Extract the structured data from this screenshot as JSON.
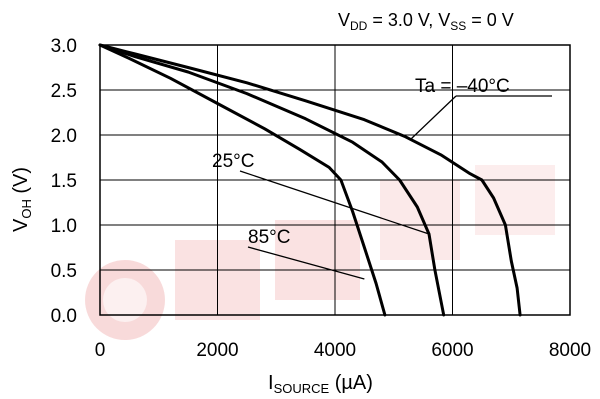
{
  "chart_data": {
    "type": "line",
    "condition": {
      "v1": "V",
      "v1_sub": "DD",
      "v1_rest": " = 3.0 V, V",
      "v2_sub": "SS",
      "v2_rest": " = 0 V"
    },
    "xlabel": {
      "main": "I",
      "sub": "SOURCE",
      "rest": " (µA)"
    },
    "ylabel": {
      "main": "V",
      "sub": "OH",
      "rest": " (V)"
    },
    "xlim": [
      0,
      8000
    ],
    "ylim": [
      0,
      3.0
    ],
    "xticks": [
      "0",
      "2000",
      "4000",
      "6000",
      "8000"
    ],
    "yticks": [
      "0.0",
      "0.5",
      "1.0",
      "1.5",
      "2.0",
      "2.5",
      "3.0"
    ],
    "grid": true,
    "series": [
      {
        "name": "Ta = –40°C",
        "points": [
          [
            0,
            3.0
          ],
          [
            600,
            2.9
          ],
          [
            1500,
            2.75
          ],
          [
            2500,
            2.58
          ],
          [
            3500,
            2.38
          ],
          [
            4500,
            2.17
          ],
          [
            5200,
            1.98
          ],
          [
            5800,
            1.78
          ],
          [
            6300,
            1.57
          ],
          [
            6500,
            1.5
          ],
          [
            6700,
            1.3
          ],
          [
            6900,
            1.0
          ],
          [
            7000,
            0.6
          ],
          [
            7100,
            0.3
          ],
          [
            7150,
            0.0
          ]
        ]
      },
      {
        "name": "25°C",
        "points": [
          [
            0,
            3.0
          ],
          [
            600,
            2.87
          ],
          [
            1500,
            2.7
          ],
          [
            2500,
            2.46
          ],
          [
            3500,
            2.18
          ],
          [
            4300,
            1.92
          ],
          [
            4800,
            1.7
          ],
          [
            5100,
            1.5
          ],
          [
            5400,
            1.2
          ],
          [
            5600,
            0.9
          ],
          [
            5700,
            0.5
          ],
          [
            5850,
            0.0
          ]
        ]
      },
      {
        "name": "85°C",
        "points": [
          [
            0,
            3.0
          ],
          [
            500,
            2.85
          ],
          [
            1200,
            2.63
          ],
          [
            2000,
            2.35
          ],
          [
            2800,
            2.07
          ],
          [
            3400,
            1.84
          ],
          [
            3900,
            1.64
          ],
          [
            4100,
            1.5
          ],
          [
            4300,
            1.15
          ],
          [
            4500,
            0.75
          ],
          [
            4700,
            0.35
          ],
          [
            4850,
            0.0
          ]
        ]
      }
    ],
    "annotations": [
      {
        "text": "Ta = –40°C",
        "series": 0
      },
      {
        "text": "25°C",
        "series": 1
      },
      {
        "text": "85°C",
        "series": 2
      }
    ]
  }
}
